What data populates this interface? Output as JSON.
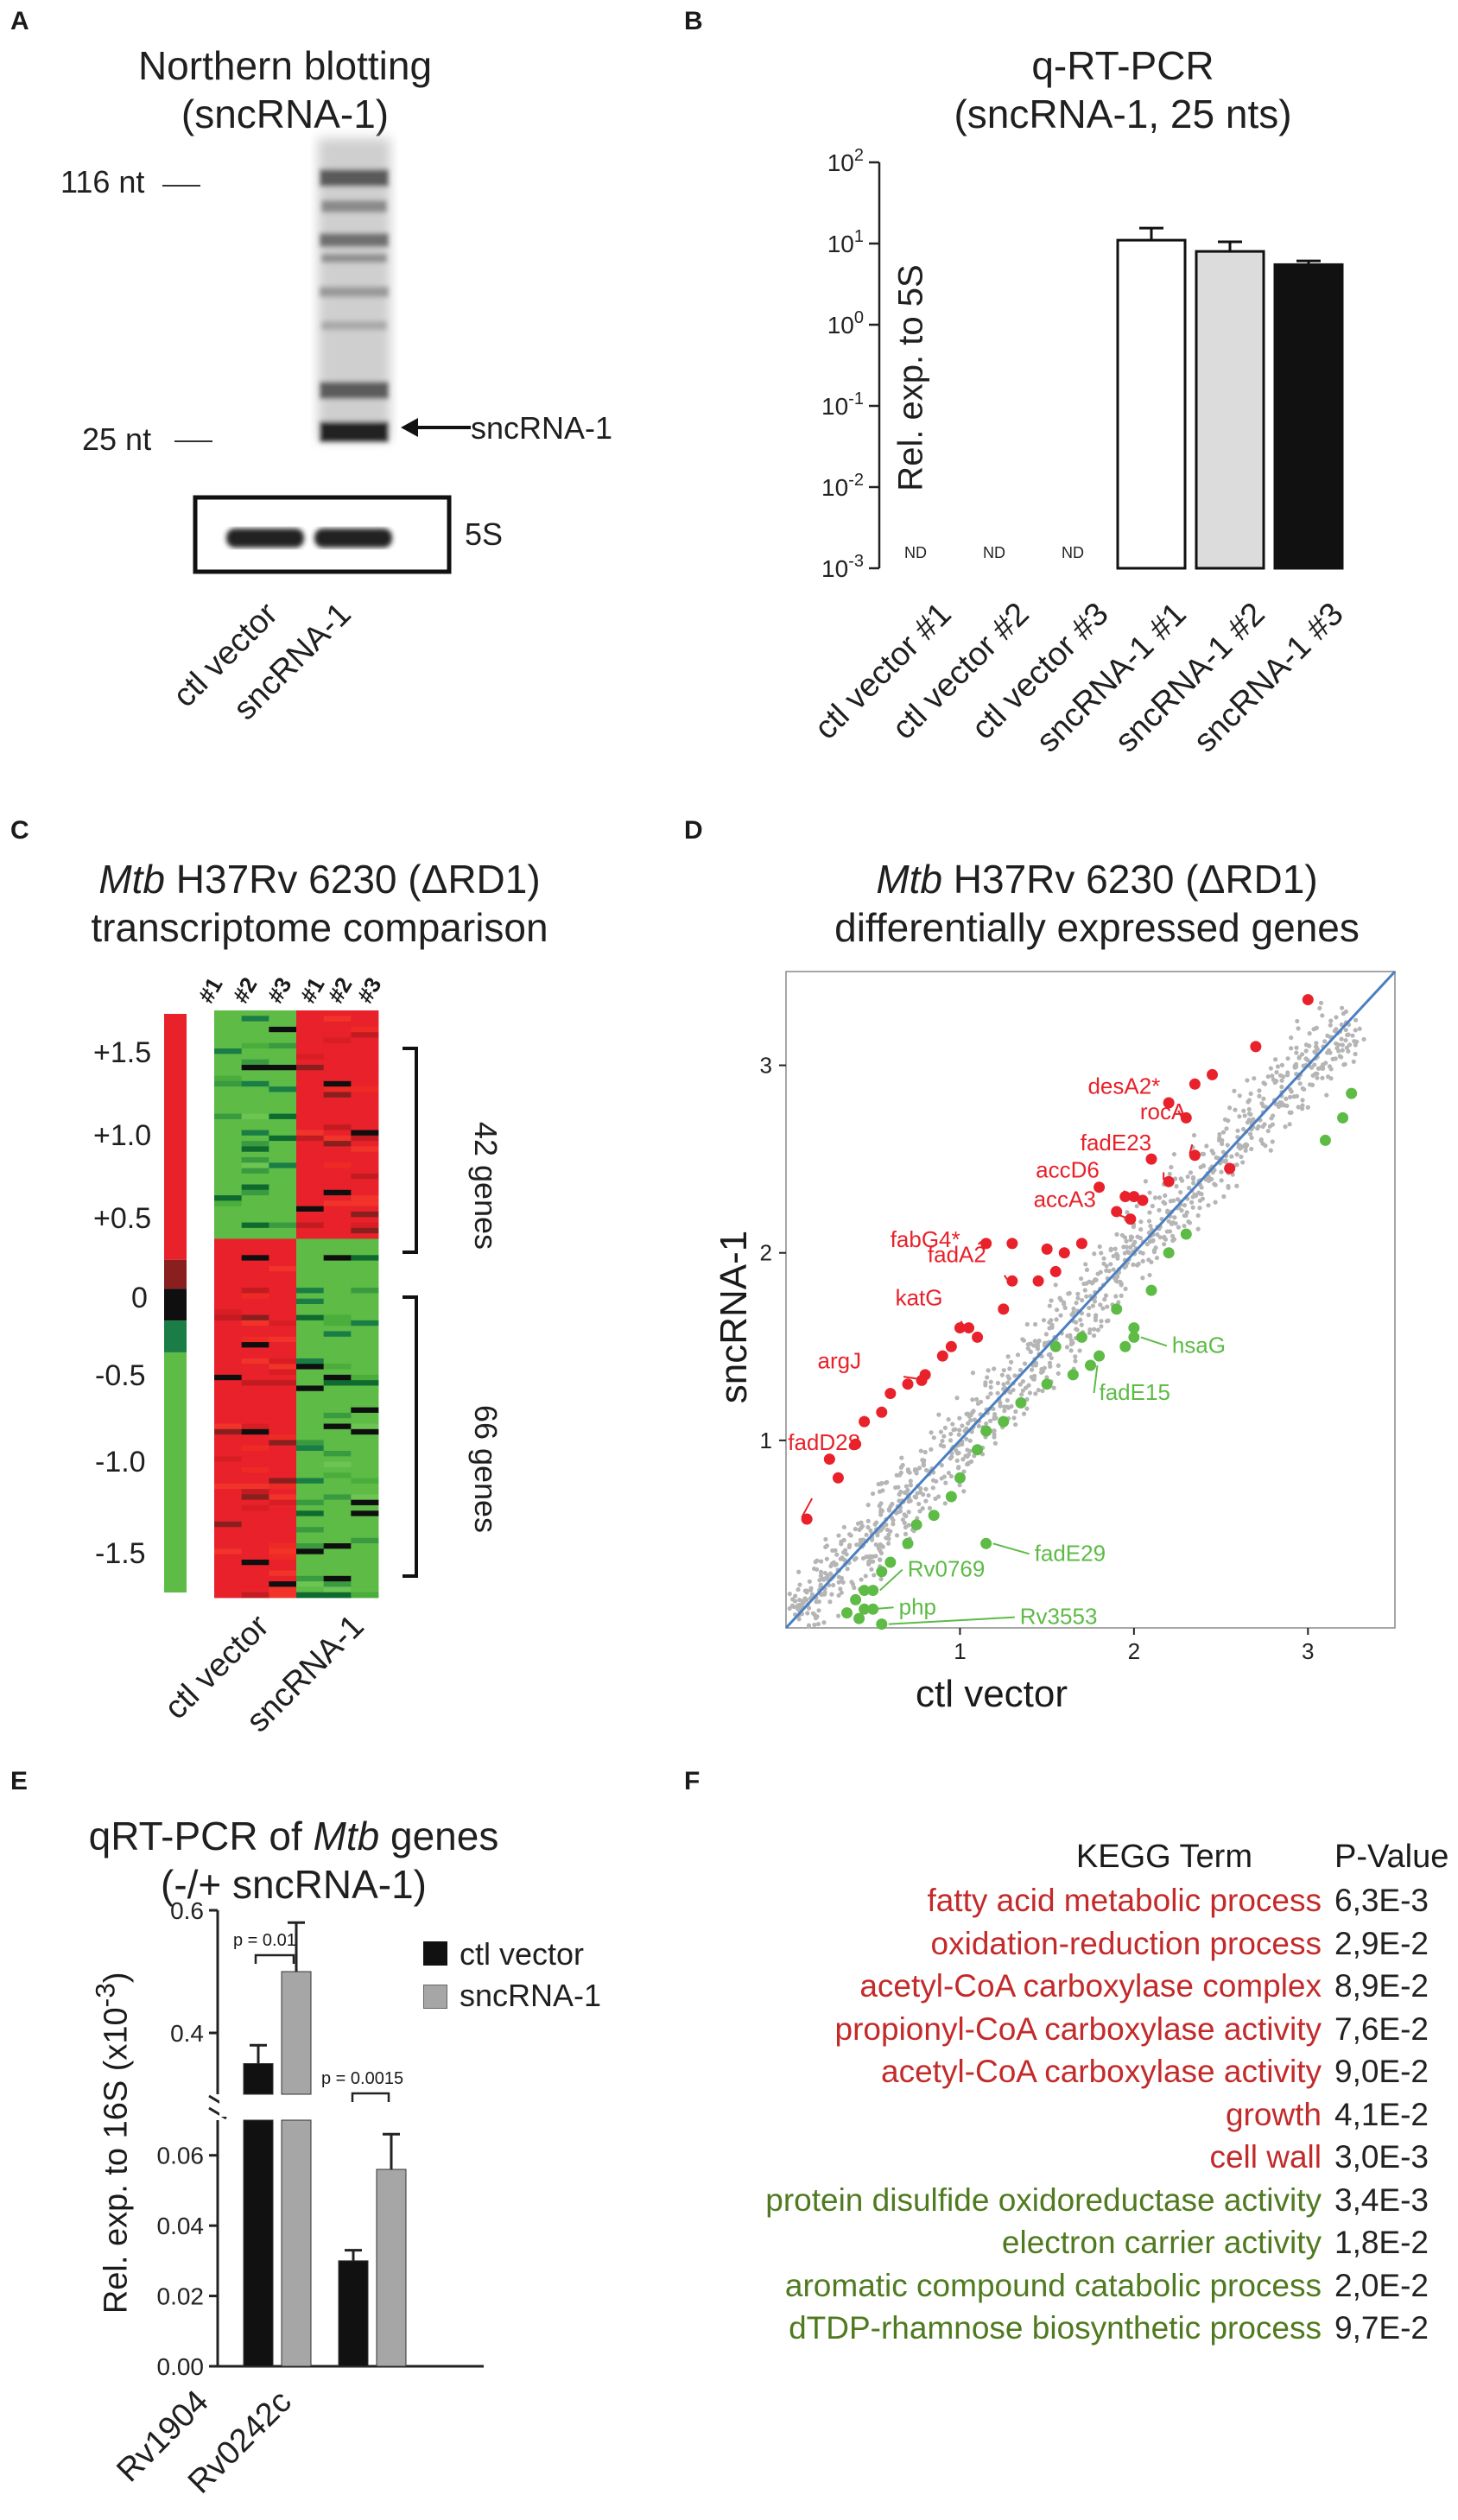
{
  "colors": {
    "red": "#e8212a",
    "green": "#5dbb46",
    "grey": "#b5b5b5",
    "blue": "#4a7fc1",
    "kegg_red": "#c32a2a",
    "kegg_green": "#4f7a1f",
    "black": "#111111"
  },
  "panelA": {
    "letter": "A",
    "title_line1": "Northern blotting",
    "title_line2": "(sncRNA-1)",
    "marker_116": "116 nt",
    "marker_25": "25 nt",
    "arrow_label": "sncRNA-1",
    "loading_label": "5S",
    "lanes": [
      "ctl vector",
      "sncRNA-1"
    ]
  },
  "panelB": {
    "letter": "B",
    "title_line1": "q-RT-PCR",
    "title_line2": "(sncRNA-1, 25 nts)",
    "ylabel": "Rel. exp. to 5S",
    "nd_label": "ND",
    "chart_data": {
      "type": "bar",
      "scale": "log",
      "title": "q-RT-PCR (sncRNA-1, 25 nts)",
      "ylabel": "Rel. exp. to 5S",
      "ylim": [
        0.001,
        100
      ],
      "ticks": [
        {
          "base": "10",
          "exp": "-3"
        },
        {
          "base": "10",
          "exp": "-2"
        },
        {
          "base": "10",
          "exp": "-1"
        },
        {
          "base": "10",
          "exp": "0"
        },
        {
          "base": "10",
          "exp": "1"
        },
        {
          "base": "10",
          "exp": "2"
        }
      ],
      "categories": [
        "ctl vector #1",
        "ctl vector #2",
        "ctl vector #3",
        "sncRNA-1 #1",
        "sncRNA-1 #2",
        "sncRNA-1 #3"
      ],
      "values": [
        null,
        null,
        null,
        11,
        8,
        5.5
      ],
      "errors": [
        null,
        null,
        null,
        4.5,
        2.5,
        0.6
      ],
      "fills": [
        "#ffffff",
        "#ffffff",
        "#ffffff",
        "#ffffff",
        "#dcdcdc",
        "#111111"
      ]
    }
  },
  "panelC": {
    "letter": "C",
    "title_italic": "Mtb",
    "title_rest": " H37Rv 6230 (ΔRD1)",
    "title_line2": "transcriptome comparison",
    "scale_labels": [
      "+1.5",
      "+1.0",
      "+0.5",
      "0",
      "-0.5",
      "-1.0",
      "-1.5"
    ],
    "col_labels": [
      "#1",
      "#2",
      "#3",
      "#1",
      "#2",
      "#3"
    ],
    "group_up": "42 genes",
    "group_down": "66 genes",
    "lanes": [
      "ctl vector",
      "sncRNA-1"
    ]
  },
  "panelD": {
    "letter": "D",
    "title_italic": "Mtb",
    "title_rest": " H37Rv 6230 (ΔRD1)",
    "title_line2": "differentially expressed genes",
    "chart_data": {
      "type": "scatter",
      "title": "Mtb H37Rv 6230 (ΔRD1) differentially expressed genes",
      "xlabel": "ctl vector",
      "ylabel": "sncRNA-1",
      "xlim": [
        0,
        3.5
      ],
      "ylim": [
        0,
        3.5
      ],
      "xticks": [
        1,
        2,
        3
      ],
      "yticks": [
        1,
        2,
        3
      ],
      "up_genes": [
        {
          "name": "desA2*",
          "x": 2.3,
          "y": 2.72
        },
        {
          "name": "rocA",
          "x": 2.35,
          "y": 2.52
        },
        {
          "name": "fadE23",
          "x": 2.2,
          "y": 2.38
        },
        {
          "name": "accD6",
          "x": 2.0,
          "y": 2.3
        },
        {
          "name": "accA3",
          "x": 1.98,
          "y": 2.18
        },
        {
          "name": "fabG4*",
          "x": 1.15,
          "y": 2.05
        },
        {
          "name": "fadA2",
          "x": 1.3,
          "y": 1.85
        },
        {
          "name": "katG",
          "x": 1.05,
          "y": 1.6
        },
        {
          "name": "argJ",
          "x": 0.78,
          "y": 1.32
        },
        {
          "name": "fadD28",
          "x": 0.12,
          "y": 0.58
        }
      ],
      "down_genes": [
        {
          "name": "hsaG",
          "x": 2.0,
          "y": 1.55
        },
        {
          "name": "fadE15",
          "x": 1.75,
          "y": 1.4
        },
        {
          "name": "fadE29",
          "x": 1.15,
          "y": 0.45
        },
        {
          "name": "Rv0769",
          "x": 0.5,
          "y": 0.2
        },
        {
          "name": "php",
          "x": 0.45,
          "y": 0.1
        },
        {
          "name": "Rv3553",
          "x": 0.55,
          "y": 0.02
        }
      ],
      "diagonal": [
        [
          0,
          0
        ],
        [
          3.5,
          3.5
        ]
      ]
    }
  },
  "panelE": {
    "letter": "E",
    "title_line1_pre": "qRT-PCR of ",
    "title_line1_italic": "Mtb",
    "title_line1_post": " genes",
    "title_line2": "(-/+ sncRNA-1)",
    "ylabel_pre": "Rel. exp. to 16S (x10",
    "ylabel_sup": "-3",
    "ylabel_post": ")",
    "p1": "p = 0.01",
    "p2": "p = 0.0015",
    "chart_data": {
      "type": "bar",
      "title": "qRT-PCR of Mtb genes (-/+ sncRNA-1)",
      "ylabel": "Rel. exp. to 16S (x10-3)",
      "broken_axis": true,
      "lower_ylim": [
        0,
        0.07
      ],
      "upper_ylim": [
        0.3,
        0.6
      ],
      "lower_ticks": [
        "0.00",
        "0.02",
        "0.04",
        "0.06"
      ],
      "upper_ticks": [
        "0.4",
        "0.6"
      ],
      "categories": [
        "Rv1904",
        "Rv0242c"
      ],
      "series": [
        {
          "name": "ctl vector",
          "color": "#111111",
          "values": [
            0.35,
            0.03
          ],
          "errors": [
            0.03,
            0.003
          ]
        },
        {
          "name": "sncRNA-1",
          "color": "#a6a6a6",
          "values": [
            0.5,
            0.056
          ],
          "errors": [
            0.08,
            0.01
          ]
        }
      ]
    }
  },
  "panelF": {
    "letter": "F",
    "header_term": "KEGG Term",
    "header_p": "P-Value",
    "rows": [
      {
        "term": "fatty acid metabolic process",
        "p": "6,3E-3",
        "group": "up"
      },
      {
        "term": "oxidation-reduction process",
        "p": "2,9E-2",
        "group": "up"
      },
      {
        "term": "acetyl-CoA carboxylase complex",
        "p": "8,9E-2",
        "group": "up"
      },
      {
        "term": "propionyl-CoA carboxylase activity",
        "p": "7,6E-2",
        "group": "up"
      },
      {
        "term": "acetyl-CoA carboxylase activity",
        "p": "9,0E-2",
        "group": "up"
      },
      {
        "term": "growth",
        "p": "4,1E-2",
        "group": "up"
      },
      {
        "term": "cell wall",
        "p": "3,0E-3",
        "group": "up"
      },
      {
        "term": "protein disulfide oxidoreductase activity",
        "p": "3,4E-3",
        "group": "down"
      },
      {
        "term": "electron carrier activity",
        "p": "1,8E-2",
        "group": "down"
      },
      {
        "term": "aromatic compound catabolic process",
        "p": "2,0E-2",
        "group": "down"
      },
      {
        "term": "dTDP-rhamnose biosynthetic process",
        "p": "9,7E-2",
        "group": "down"
      }
    ]
  }
}
